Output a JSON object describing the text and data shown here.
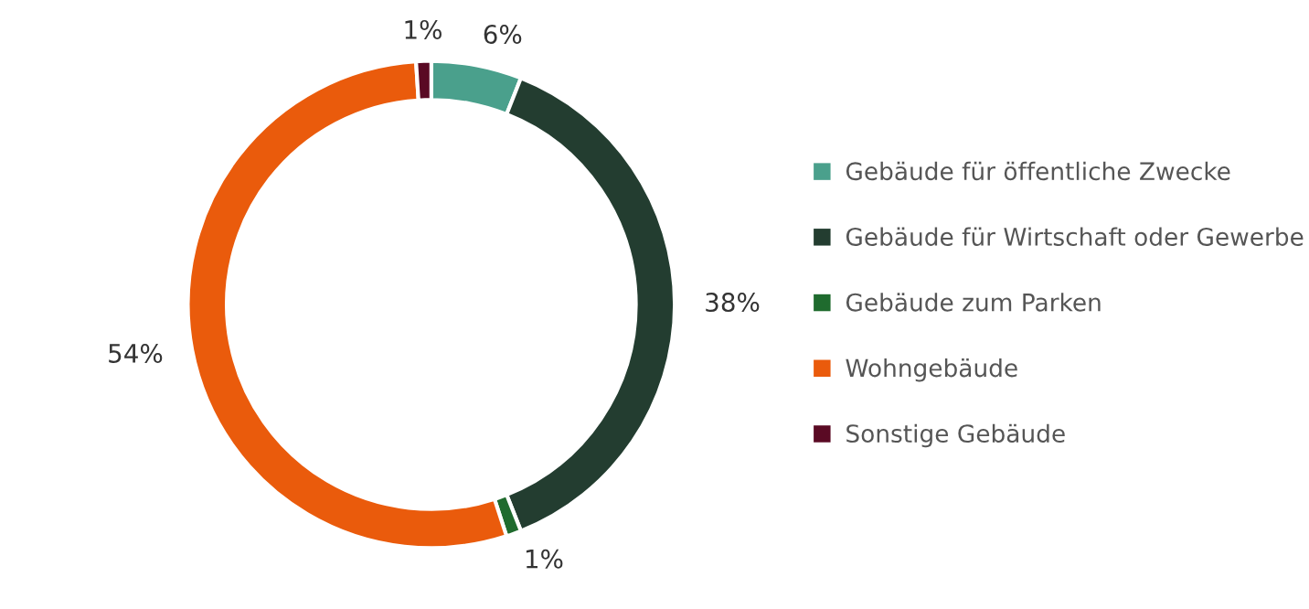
{
  "chart_data": {
    "type": "donut",
    "categories": [
      "Gebäude für öffentliche Zwecke",
      "Gebäude für Wirtschaft oder Gewerbe",
      "Gebäude zum Parken",
      "Wohngebäude",
      "Sonstige Gebäude"
    ],
    "values": [
      6,
      38,
      1,
      54,
      1
    ],
    "colors": [
      "#4aa08c",
      "#233d30",
      "#1f6b2e",
      "#ea5b0c",
      "#5a0a24"
    ],
    "value_labels": [
      "6%",
      "38%",
      "1%",
      "54%",
      "1%"
    ],
    "legend": "right"
  }
}
